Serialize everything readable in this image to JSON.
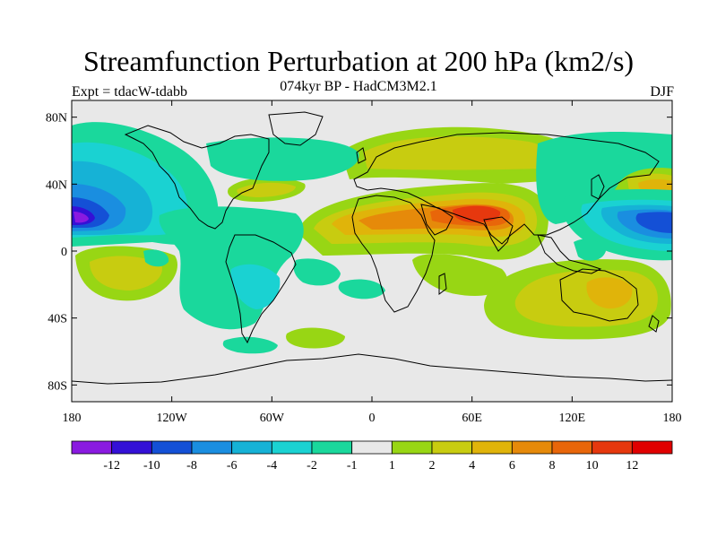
{
  "title": "Streamfunction Perturbation at 200 hPa (km2/s)",
  "subtitle": "074kyr BP - HadCM3M2.1",
  "experiment": "Expt = tdacW-tdabb",
  "season": "DJF",
  "lat_ticks": [
    {
      "value": 80,
      "label": "80N"
    },
    {
      "value": 40,
      "label": "40N"
    },
    {
      "value": 0,
      "label": "0"
    },
    {
      "value": -40,
      "label": "40S"
    },
    {
      "value": -80,
      "label": "80S"
    }
  ],
  "lon_ticks": [
    {
      "value": -180,
      "label": "180"
    },
    {
      "value": -120,
      "label": "120W"
    },
    {
      "value": -60,
      "label": "60W"
    },
    {
      "value": 0,
      "label": "0"
    },
    {
      "value": 60,
      "label": "60E"
    },
    {
      "value": 120,
      "label": "120E"
    },
    {
      "value": 180,
      "label": "180"
    }
  ],
  "colorbar": {
    "colors": [
      "#8a1ae0",
      "#3410d6",
      "#1450d6",
      "#1a8ee0",
      "#16b2d6",
      "#1ad2d2",
      "#1ad89c",
      "#e8e8e8",
      "#98d614",
      "#c8cc10",
      "#e0b40a",
      "#e68a0a",
      "#e8660a",
      "#e6380e",
      "#e00000"
    ],
    "labels": [
      "-12",
      "-10",
      "-8",
      "-6",
      "-4",
      "-2",
      "-1",
      "1",
      "2",
      "4",
      "6",
      "8",
      "10",
      "12"
    ]
  }
}
